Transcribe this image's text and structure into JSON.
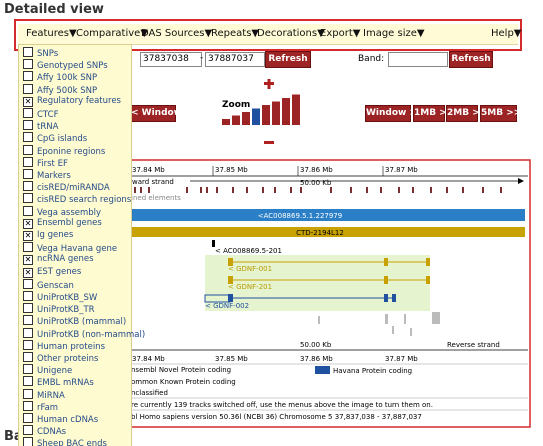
{
  "header": {
    "title": "Detailed view"
  },
  "menu": {
    "items": [
      "Features▼",
      "Comparative▼",
      "DAS Sources▼",
      "Repeats▼",
      "Decorations▼",
      "Export▼",
      "Image size▼"
    ],
    "help": "Help▼"
  },
  "dropdown": {
    "items": [
      {
        "label": "SNPs",
        "checked": false
      },
      {
        "label": "Genotyped SNPs",
        "checked": false
      },
      {
        "label": "Affy 100k SNP",
        "checked": false
      },
      {
        "label": "Affy 500k SNP",
        "checked": false
      },
      {
        "label": "Regulatory features",
        "checked": true
      },
      {
        "label": "CTCF",
        "checked": false
      },
      {
        "label": "tRNA",
        "checked": false
      },
      {
        "label": "CpG islands",
        "checked": false
      },
      {
        "label": "Eponine regions",
        "checked": false
      },
      {
        "label": "First EF",
        "checked": false
      },
      {
        "label": "Markers",
        "checked": false
      },
      {
        "label": "cisRED/miRANDA",
        "checked": false
      },
      {
        "label": "cisRED search regions",
        "checked": false
      },
      {
        "label": "Vega assembly",
        "checked": false
      },
      {
        "label": "Ensembl genes",
        "checked": true
      },
      {
        "label": "Ig genes",
        "checked": true
      },
      {
        "label": "Vega Havana gene",
        "checked": false
      },
      {
        "label": "ncRNA genes",
        "checked": true
      },
      {
        "label": "EST genes",
        "checked": true
      },
      {
        "label": "Genscan",
        "checked": false
      },
      {
        "label": "UniProtKB_SW",
        "checked": false
      },
      {
        "label": "UniProtKB_TR",
        "checked": false
      },
      {
        "label": "UniProtKB (mammal)",
        "checked": false
      },
      {
        "label": "UniProtKB (non-mammal)",
        "checked": false
      },
      {
        "label": "Human proteins",
        "checked": false
      },
      {
        "label": "Other proteins",
        "checked": false
      },
      {
        "label": "Unigene",
        "checked": false
      },
      {
        "label": "EMBL mRNAs",
        "checked": false
      },
      {
        "label": "MiRNA",
        "checked": false
      },
      {
        "label": "rFam",
        "checked": false
      },
      {
        "label": "Human cDNAs",
        "checked": false
      },
      {
        "label": "CDNAs",
        "checked": false
      },
      {
        "label": "Sheep BAC ends",
        "checked": false
      }
    ]
  },
  "location": {
    "start": "37837038",
    "separator": "-",
    "end": "37887037",
    "refresh": "Refresh",
    "band_label": "Band:",
    "band_refresh": "Refresh"
  },
  "zoom": {
    "label": "Zoom"
  },
  "nav": {
    "left": "< Window",
    "right": [
      "Window >",
      "1MB >",
      "2MB >",
      "5MB >>"
    ]
  },
  "image": {
    "scale_top": [
      "37.84 Mb",
      "37.85 Mb",
      "37.86 Mb",
      "37.87 Mb"
    ],
    "forward_strand": "ward strand",
    "length_top": "50.00 Kb",
    "elements": "ined elements",
    "contig": "<AC008869.5.1.227979",
    "clone": "CTD-2194L12",
    "genes": [
      "< AC008869.5-201",
      "< GDNF-001",
      "< GDNF-201",
      "< GDNF-002"
    ],
    "scale_bottom": [
      "37.84 Mb",
      "37.85 Mb",
      "37.86 Mb",
      "37.87 Mb"
    ],
    "length_bottom": "50.00 Kb",
    "reverse_strand": "Reverse strand",
    "legend": [
      "nsembl Novel Protein coding",
      "Havana Protein coding",
      "ommon Known Protein coding",
      "nclassified"
    ],
    "info": "re currently 139 tracks switched off, use the menus above the image to turn them on.",
    "version": "bl Homo sapiens version 50.36l (NCBI 36) Chromosome 5 37,837,038 - 37,887,037"
  },
  "footer": {
    "heading": "Ba"
  }
}
